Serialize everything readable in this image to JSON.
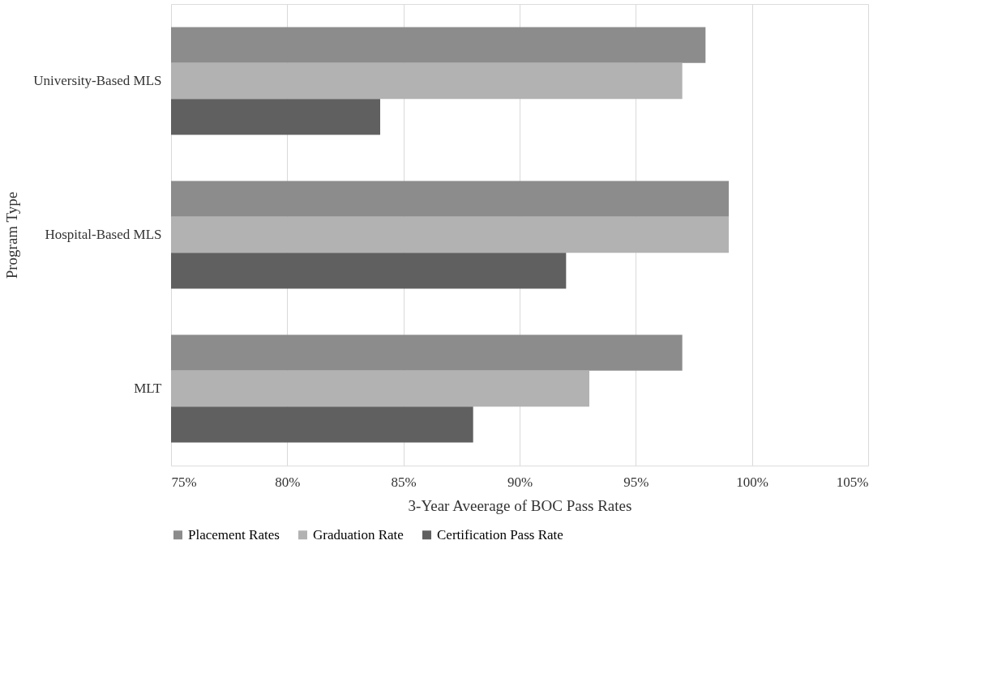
{
  "chart_data": {
    "type": "bar",
    "orientation": "horizontal",
    "categories": [
      "University-Based MLS",
      "Hospital-Based MLS",
      "MLT"
    ],
    "series": [
      {
        "name": "Placement Rates",
        "color": "#8c8c8c",
        "values": [
          98,
          99,
          97
        ]
      },
      {
        "name": "Graduation Rate",
        "color": "#b2b2b2",
        "values": [
          97,
          99,
          93
        ]
      },
      {
        "name": "Certification Pass Rate",
        "color": "#606060",
        "values": [
          84,
          92,
          88
        ]
      }
    ],
    "xlim": [
      75,
      105
    ],
    "xticks": [
      {
        "value": 75,
        "label": "75%"
      },
      {
        "value": 80,
        "label": "80%"
      },
      {
        "value": 85,
        "label": "85%"
      },
      {
        "value": 90,
        "label": "90%"
      },
      {
        "value": 95,
        "label": "95%"
      },
      {
        "value": 100,
        "label": "100%"
      },
      {
        "value": 105,
        "label": "105%"
      }
    ],
    "xlabel": "3-Year Aveerage of BOC Pass Rates",
    "ylabel": "Program Type",
    "grid": "x",
    "legend": "bottom"
  }
}
